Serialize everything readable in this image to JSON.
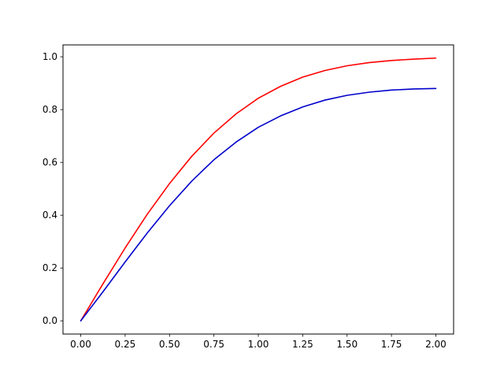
{
  "chart_data": {
    "type": "line",
    "title": "",
    "xlabel": "",
    "ylabel": "",
    "xlim": [
      -0.1,
      2.1
    ],
    "ylim": [
      -0.05,
      1.045
    ],
    "grid": false,
    "legend": "none",
    "x_ticks": [
      "0.00",
      "0.25",
      "0.50",
      "0.75",
      "1.00",
      "1.25",
      "1.50",
      "1.75",
      "2.00"
    ],
    "x_tick_values": [
      0,
      0.25,
      0.5,
      0.75,
      1.0,
      1.25,
      1.5,
      1.75,
      2.0
    ],
    "y_ticks": [
      "0.0",
      "0.2",
      "0.4",
      "0.6",
      "0.8",
      "1.0"
    ],
    "y_tick_values": [
      0,
      0.2,
      0.4,
      0.6,
      0.8,
      1.0
    ],
    "x": [
      0,
      0.125,
      0.25,
      0.375,
      0.5,
      0.625,
      0.75,
      0.875,
      1.0,
      1.125,
      1.25,
      1.375,
      1.5,
      1.625,
      1.75,
      1.875,
      2.0
    ],
    "series": [
      {
        "color": "#ff0000",
        "values": [
          0,
          0.14,
          0.276,
          0.404,
          0.52,
          0.623,
          0.711,
          0.784,
          0.843,
          0.888,
          0.923,
          0.948,
          0.966,
          0.978,
          0.986,
          0.991,
          0.995
        ]
      },
      {
        "color": "#0000cc",
        "values": [
          0,
          0.11,
          0.223,
          0.333,
          0.436,
          0.529,
          0.61,
          0.677,
          0.733,
          0.776,
          0.81,
          0.836,
          0.854,
          0.866,
          0.874,
          0.878,
          0.88
        ]
      }
    ]
  }
}
